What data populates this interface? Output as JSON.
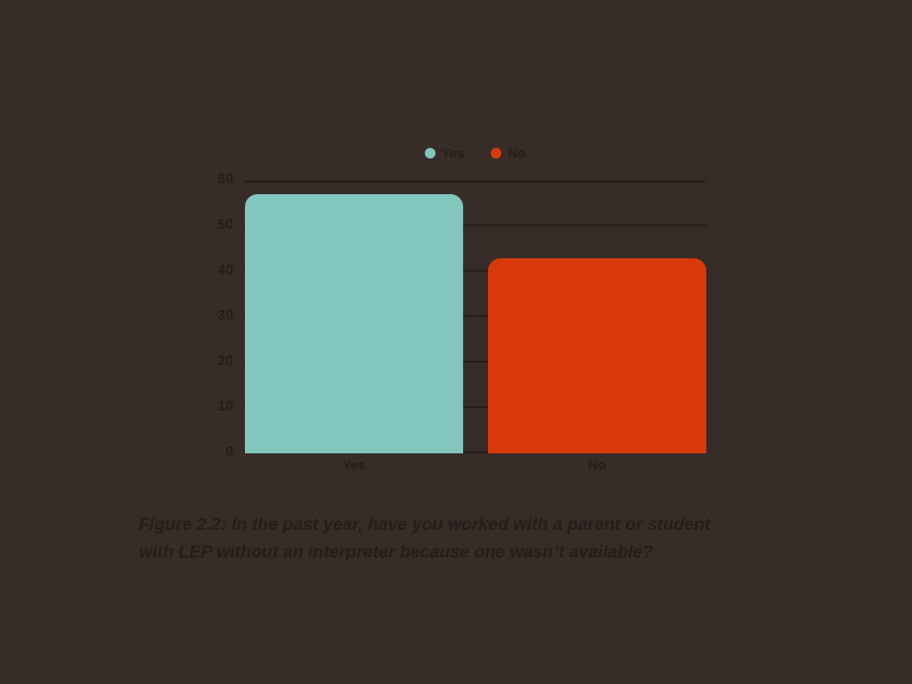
{
  "colors": {
    "background": "#372c27",
    "text": "#241e1b",
    "gridline": "#241e1b",
    "bar_yes": "#82c6bd",
    "bar_no": "#d83a0b"
  },
  "chart_data": {
    "type": "bar",
    "categories": [
      "Yes",
      "No"
    ],
    "values": [
      57,
      43
    ],
    "title": "",
    "xlabel": "",
    "ylabel": "",
    "ylim": [
      0,
      60
    ],
    "yticks": [
      0,
      10,
      20,
      30,
      40,
      50,
      60
    ],
    "grid": true,
    "legend_position": "top",
    "legend": [
      {
        "label": "Yes",
        "color": "#82c6bd"
      },
      {
        "label": "No",
        "color": "#d83a0b"
      }
    ]
  },
  "caption": {
    "full_text": "Figure 2.2: In the past year, have you worked with a parent or student with LEP without an interpreter because one wasn’t available?",
    "lines": [
      "Figure 2.2: In the past year, have you worked with a parent or student",
      "with LEP without an interpreter because one wasn’t available?"
    ]
  }
}
